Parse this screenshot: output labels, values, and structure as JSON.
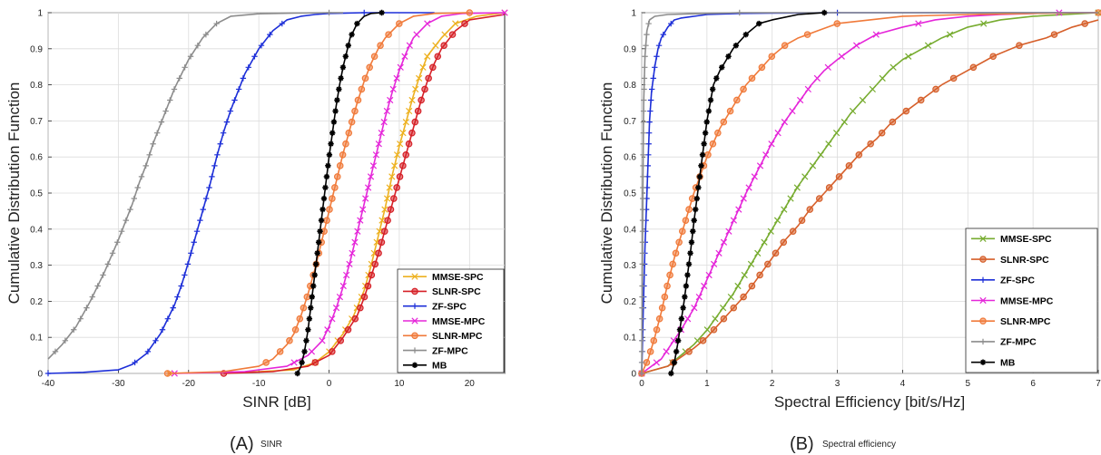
{
  "panels": [
    {
      "caption_letter": "(A)",
      "caption_text": "SINR"
    },
    {
      "caption_letter": "(B)",
      "caption_text": "Spectral efficiency"
    }
  ],
  "chart_data": [
    {
      "type": "line",
      "xlabel": "SINR [dB]",
      "ylabel": "Cumulative Distribution Function",
      "xlim": [
        -40,
        25
      ],
      "ylim": [
        0,
        1
      ],
      "xticks": [
        -40,
        -30,
        -20,
        -10,
        0,
        10,
        20
      ],
      "yticks": [
        0,
        0.1,
        0.2,
        0.3,
        0.4,
        0.5,
        0.6,
        0.7,
        0.8,
        0.9,
        1
      ],
      "grid": true,
      "legend_position": "bottom-right",
      "series": [
        {
          "name": "MMSE-SPC",
          "color": "#edb120",
          "marker": "x",
          "x": [
            -22.7,
            -10,
            -5,
            -2,
            0,
            2,
            3.5,
            5,
            6,
            7,
            8,
            9,
            10,
            11,
            12,
            13,
            14,
            16,
            18,
            21,
            25
          ],
          "y": [
            0,
            0.005,
            0.01,
            0.03,
            0.06,
            0.11,
            0.16,
            0.23,
            0.3,
            0.38,
            0.46,
            0.55,
            0.63,
            0.7,
            0.77,
            0.83,
            0.88,
            0.93,
            0.97,
            0.99,
            1
          ]
        },
        {
          "name": "SLNR-SPC",
          "color": "#d62027",
          "marker": "o",
          "x": [
            -15,
            -8,
            -3,
            0,
            2,
            4,
            5,
            6,
            7,
            8,
            9,
            10,
            11,
            12,
            13,
            14,
            15,
            16,
            18,
            20,
            25
          ],
          "y": [
            0,
            0.005,
            0.02,
            0.05,
            0.1,
            0.16,
            0.21,
            0.27,
            0.33,
            0.4,
            0.47,
            0.54,
            0.61,
            0.68,
            0.75,
            0.81,
            0.86,
            0.9,
            0.95,
            0.98,
            0.995
          ]
        },
        {
          "name": "ZF-SPC",
          "color": "#1d2fd8",
          "marker": "+",
          "x": [
            -40,
            -35,
            -30,
            -28,
            -26,
            -24,
            -22,
            -21,
            -20,
            -19,
            -18,
            -17,
            -16,
            -15,
            -14,
            -12,
            -10,
            -8,
            -6,
            -4,
            -2,
            0,
            5,
            15
          ],
          "y": [
            0,
            0.003,
            0.01,
            0.025,
            0.055,
            0.11,
            0.19,
            0.245,
            0.31,
            0.38,
            0.45,
            0.52,
            0.6,
            0.67,
            0.73,
            0.83,
            0.9,
            0.95,
            0.98,
            0.99,
            0.995,
            0.998,
            1,
            1
          ]
        },
        {
          "name": "MMSE-MPC",
          "color": "#e526d9",
          "marker": "x",
          "x": [
            -22,
            -12,
            -6,
            -3,
            -1,
            0,
            1,
            2,
            3,
            4,
            5,
            6,
            7,
            8,
            9,
            10,
            11,
            12,
            14,
            16,
            19,
            25
          ],
          "y": [
            0,
            0.005,
            0.02,
            0.05,
            0.09,
            0.13,
            0.18,
            0.24,
            0.31,
            0.39,
            0.47,
            0.55,
            0.63,
            0.71,
            0.78,
            0.84,
            0.89,
            0.93,
            0.97,
            0.99,
            0.998,
            1
          ]
        },
        {
          "name": "SLNR-MPC",
          "color": "#f07a3a",
          "marker": "o",
          "x": [
            -23,
            -15,
            -10,
            -8,
            -6,
            -5,
            -4,
            -3,
            -2,
            -1,
            0,
            1,
            2,
            3,
            4,
            5,
            6,
            7,
            8,
            10,
            12,
            15,
            20
          ],
          "y": [
            0,
            0.005,
            0.02,
            0.04,
            0.08,
            0.11,
            0.16,
            0.22,
            0.29,
            0.37,
            0.45,
            0.53,
            0.61,
            0.68,
            0.75,
            0.81,
            0.86,
            0.9,
            0.93,
            0.97,
            0.99,
            0.998,
            1
          ]
        },
        {
          "name": "ZF-MPC",
          "color": "#8c8c8c",
          "marker": "+",
          "x": [
            -40,
            -38,
            -36,
            -34,
            -32,
            -30,
            -29,
            -28,
            -27,
            -26,
            -25,
            -24,
            -23,
            -22,
            -21,
            -20,
            -18,
            -16,
            -14,
            -10,
            -5,
            0,
            2
          ],
          "y": [
            0.04,
            0.08,
            0.13,
            0.2,
            0.28,
            0.37,
            0.42,
            0.47,
            0.53,
            0.58,
            0.64,
            0.69,
            0.74,
            0.79,
            0.83,
            0.87,
            0.93,
            0.97,
            0.99,
            0.997,
            0.999,
            1,
            1
          ]
        },
        {
          "name": "MB",
          "color": "#000000",
          "marker": "*",
          "x": [
            -4.5,
            -4,
            -3.5,
            -3,
            -2.5,
            -2,
            -1.5,
            -1,
            -0.5,
            0,
            0.5,
            1,
            1.5,
            2,
            2.5,
            3,
            3.5,
            4,
            5,
            6,
            7.5
          ],
          "y": [
            0,
            0.02,
            0.06,
            0.12,
            0.2,
            0.28,
            0.36,
            0.44,
            0.52,
            0.6,
            0.67,
            0.74,
            0.8,
            0.85,
            0.89,
            0.93,
            0.95,
            0.97,
            0.99,
            0.998,
            1
          ]
        }
      ]
    },
    {
      "type": "line",
      "xlabel": "Spectral Efficiency [bit/s/Hz]",
      "ylabel": "Cumulative Distribution Function",
      "xlim": [
        0,
        7
      ],
      "ylim": [
        0,
        1
      ],
      "xticks": [
        0,
        1,
        2,
        3,
        4,
        5,
        6,
        7
      ],
      "yticks": [
        0,
        0.1,
        0.2,
        0.3,
        0.4,
        0.5,
        0.6,
        0.7,
        0.8,
        0.9,
        1
      ],
      "grid": true,
      "legend_position": "bottom-right",
      "series": [
        {
          "name": "MMSE-SPC",
          "color": "#77ac30",
          "marker": "x",
          "x": [
            0,
            0.4,
            0.8,
            1.0,
            1.2,
            1.4,
            1.6,
            1.8,
            2.0,
            2.2,
            2.4,
            2.6,
            2.8,
            3.0,
            3.2,
            3.4,
            3.6,
            3.8,
            4.0,
            4.3,
            4.6,
            5.0,
            5.5,
            6.0,
            6.5,
            7.0
          ],
          "y": [
            0,
            0.02,
            0.08,
            0.12,
            0.17,
            0.22,
            0.28,
            0.34,
            0.4,
            0.46,
            0.52,
            0.57,
            0.62,
            0.67,
            0.72,
            0.76,
            0.8,
            0.84,
            0.87,
            0.9,
            0.93,
            0.96,
            0.98,
            0.99,
            0.995,
            1
          ]
        },
        {
          "name": "SLNR-SPC",
          "color": "#d65f2a",
          "marker": "o",
          "x": [
            0,
            0.4,
            0.8,
            1.0,
            1.2,
            1.4,
            1.6,
            1.8,
            2.0,
            2.2,
            2.4,
            2.6,
            2.8,
            3.0,
            3.2,
            3.4,
            3.6,
            3.8,
            4.0,
            4.3,
            4.6,
            5.0,
            5.4,
            5.8,
            6.2,
            6.6,
            7.0
          ],
          "y": [
            0,
            0.02,
            0.07,
            0.1,
            0.14,
            0.18,
            0.22,
            0.27,
            0.32,
            0.37,
            0.41,
            0.46,
            0.5,
            0.54,
            0.58,
            0.62,
            0.65,
            0.69,
            0.72,
            0.76,
            0.8,
            0.84,
            0.88,
            0.91,
            0.93,
            0.96,
            0.98
          ]
        },
        {
          "name": "ZF-SPC",
          "color": "#1d2fd8",
          "marker": "+",
          "x": [
            0,
            0.02,
            0.05,
            0.08,
            0.1,
            0.12,
            0.15,
            0.2,
            0.25,
            0.3,
            0.4,
            0.5,
            0.6,
            0.8,
            1.0,
            1.5,
            2.0,
            3.0,
            5.0,
            7.0
          ],
          "y": [
            0,
            0.15,
            0.35,
            0.5,
            0.6,
            0.7,
            0.78,
            0.85,
            0.9,
            0.93,
            0.96,
            0.98,
            0.985,
            0.99,
            0.995,
            0.998,
            0.999,
            1,
            1,
            1
          ]
        },
        {
          "name": "MMSE-MPC",
          "color": "#e526d9",
          "marker": "x",
          "x": [
            0,
            0.3,
            0.6,
            0.8,
            1.0,
            1.2,
            1.4,
            1.6,
            1.8,
            2.0,
            2.2,
            2.4,
            2.6,
            2.8,
            3.0,
            3.3,
            3.6,
            4.0,
            4.5,
            5.0,
            5.5,
            6.4,
            7.0
          ],
          "y": [
            0,
            0.04,
            0.12,
            0.18,
            0.26,
            0.34,
            0.42,
            0.5,
            0.57,
            0.64,
            0.7,
            0.75,
            0.8,
            0.84,
            0.87,
            0.91,
            0.94,
            0.96,
            0.98,
            0.99,
            0.995,
            1,
            1
          ]
        },
        {
          "name": "SLNR-MPC",
          "color": "#f07a3a",
          "marker": "o",
          "x": [
            0,
            0.1,
            0.2,
            0.3,
            0.4,
            0.5,
            0.6,
            0.7,
            0.8,
            0.9,
            1.0,
            1.2,
            1.4,
            1.6,
            1.8,
            2.0,
            2.2,
            2.4,
            2.7,
            3.0,
            3.5,
            4.0,
            5.0,
            6.0,
            7.0
          ],
          "y": [
            0,
            0.04,
            0.1,
            0.17,
            0.25,
            0.32,
            0.38,
            0.44,
            0.5,
            0.55,
            0.6,
            0.68,
            0.74,
            0.8,
            0.84,
            0.88,
            0.91,
            0.93,
            0.95,
            0.97,
            0.98,
            0.99,
            0.995,
            0.998,
            1
          ]
        },
        {
          "name": "ZF-MPC",
          "color": "#8c8c8c",
          "marker": "+",
          "x": [
            0,
            0.01,
            0.02,
            0.03,
            0.05,
            0.08,
            0.12,
            0.2,
            0.4,
            1.0,
            1.5,
            3.0,
            7.0
          ],
          "y": [
            0,
            0.3,
            0.55,
            0.75,
            0.88,
            0.95,
            0.98,
            0.99,
            0.995,
            0.998,
            1,
            1,
            1
          ]
        },
        {
          "name": "MB",
          "color": "#000000",
          "marker": "*",
          "x": [
            0.45,
            0.5,
            0.55,
            0.6,
            0.65,
            0.7,
            0.75,
            0.8,
            0.85,
            0.9,
            0.95,
            1.0,
            1.05,
            1.1,
            1.2,
            1.3,
            1.4,
            1.5,
            1.6,
            1.8,
            2.0,
            2.4,
            2.8
          ],
          "y": [
            0,
            0.03,
            0.08,
            0.14,
            0.2,
            0.27,
            0.34,
            0.42,
            0.49,
            0.56,
            0.63,
            0.7,
            0.75,
            0.8,
            0.84,
            0.87,
            0.9,
            0.92,
            0.94,
            0.97,
            0.98,
            0.995,
            1
          ]
        }
      ]
    }
  ]
}
